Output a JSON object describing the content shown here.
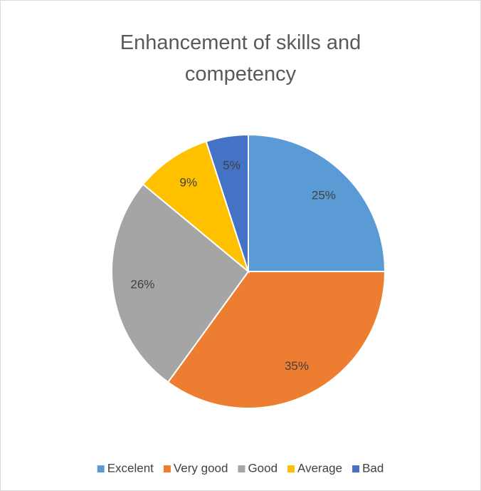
{
  "chart_data": {
    "type": "pie",
    "title": "Enhancement of skills and competency",
    "categories": [
      "Excelent",
      "Very good",
      "Good",
      "Average",
      "Bad"
    ],
    "values": [
      25,
      35,
      26,
      9,
      5
    ],
    "value_labels": [
      "25%",
      "35%",
      "26%",
      "9%",
      "5%"
    ],
    "colors": [
      "#5b9bd5",
      "#ed7d31",
      "#a5a5a5",
      "#ffc000",
      "#4472c4"
    ],
    "legend": "bottom"
  }
}
